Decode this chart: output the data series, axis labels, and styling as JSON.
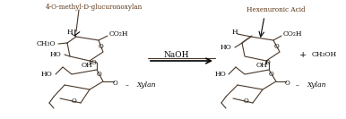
{
  "title": "",
  "background_color": "#ffffff",
  "label_4OMethyl": "4-O-methyl-D-glucuronoxylan",
  "label_hexenuronic": "Hexenuronic Acid",
  "label_naoh": "NaOH",
  "label_co2h_left": "CO₂H",
  "label_co2h_right": "CO₂H",
  "label_ch3o": "CH₃O",
  "label_ho_1": "HO",
  "label_oh_1": "OH",
  "label_ho_2": "HO",
  "label_h_left": "H",
  "label_h_right": "H",
  "label_ho_right1": "HO",
  "label_oh_right": "OH",
  "label_ho_right2": "HO",
  "label_ch3oh": "CH₃OH",
  "label_xylan_left": "Xylan",
  "label_xylan_right": "Xylan",
  "label_plus": "+",
  "label_O": "O",
  "line_color": "#4a3728",
  "text_color": "#000000",
  "arrow_color": "#000000",
  "figsize": [
    3.86,
    1.33
  ],
  "dpi": 100
}
